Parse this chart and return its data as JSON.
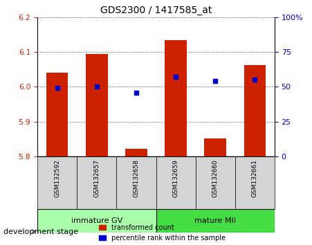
{
  "title": "GDS2300 / 1417585_at",
  "categories": [
    "GSM132592",
    "GSM132657",
    "GSM132658",
    "GSM132659",
    "GSM132660",
    "GSM132661"
  ],
  "bar_values": [
    6.04,
    6.095,
    5.822,
    6.135,
    5.852,
    6.062
  ],
  "bar_base": 5.8,
  "dot_values": [
    49,
    50,
    46,
    57,
    54,
    55
  ],
  "ylim_left": [
    5.8,
    6.2
  ],
  "ylim_right": [
    0,
    100
  ],
  "yticks_left": [
    5.8,
    5.9,
    6.0,
    6.1,
    6.2
  ],
  "yticks_right": [
    0,
    25,
    50,
    75,
    100
  ],
  "ytick_labels_right": [
    "0",
    "25",
    "50",
    "75",
    "100%"
  ],
  "bar_color": "#cc2200",
  "dot_color": "#0000cc",
  "group1_label": "immature GV",
  "group2_label": "mature MII",
  "group1_indices": [
    0,
    1,
    2
  ],
  "group2_indices": [
    3,
    4,
    5
  ],
  "group1_color": "#aaffaa",
  "group2_color": "#44dd44",
  "stage_label": "development stage",
  "legend_bar_label": "transformed count",
  "legend_dot_label": "percentile rank within the sample",
  "xlabel_color": "#cc2200",
  "ylabel_right_color": "#0000cc",
  "tick_label_gray_bg": "#d4d4d4",
  "bar_width": 0.55
}
